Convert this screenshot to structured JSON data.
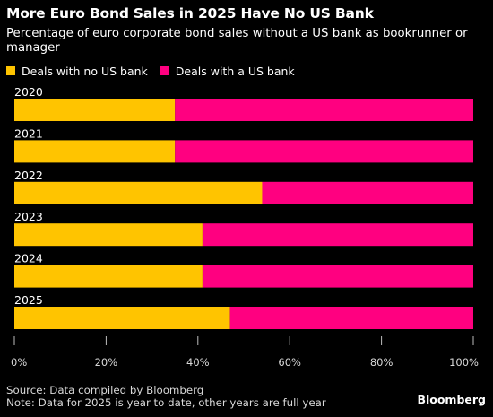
{
  "chart_data": {
    "type": "bar",
    "orientation": "horizontal",
    "stacked": true,
    "title": "More Euro Bond Sales in 2025 Have No US Bank",
    "subtitle": "Percentage of euro corporate bond sales without a US bank as bookrunner or manager",
    "categories": [
      "2020",
      "2021",
      "2022",
      "2023",
      "2024",
      "2025"
    ],
    "series": [
      {
        "name": "Deals with no US bank",
        "color": "#ffc400",
        "values": [
          35,
          35,
          54,
          41,
          41,
          47
        ]
      },
      {
        "name": "Deals with a US bank",
        "color": "#ff0080",
        "values": [
          65,
          65,
          46,
          59,
          59,
          53
        ]
      }
    ],
    "xlim": [
      0,
      100
    ],
    "x_ticks": [
      "0%",
      "20%",
      "40%",
      "60%",
      "80%",
      "100%"
    ],
    "x_tick_values": [
      0,
      20,
      40,
      60,
      80,
      100
    ],
    "grid": false,
    "legend_position": "top-left"
  },
  "footer": {
    "source": "Source: Data compiled by Bloomberg",
    "note": "Note: Data for 2025 is year to date, other years are full year"
  },
  "brand": "Bloomberg"
}
